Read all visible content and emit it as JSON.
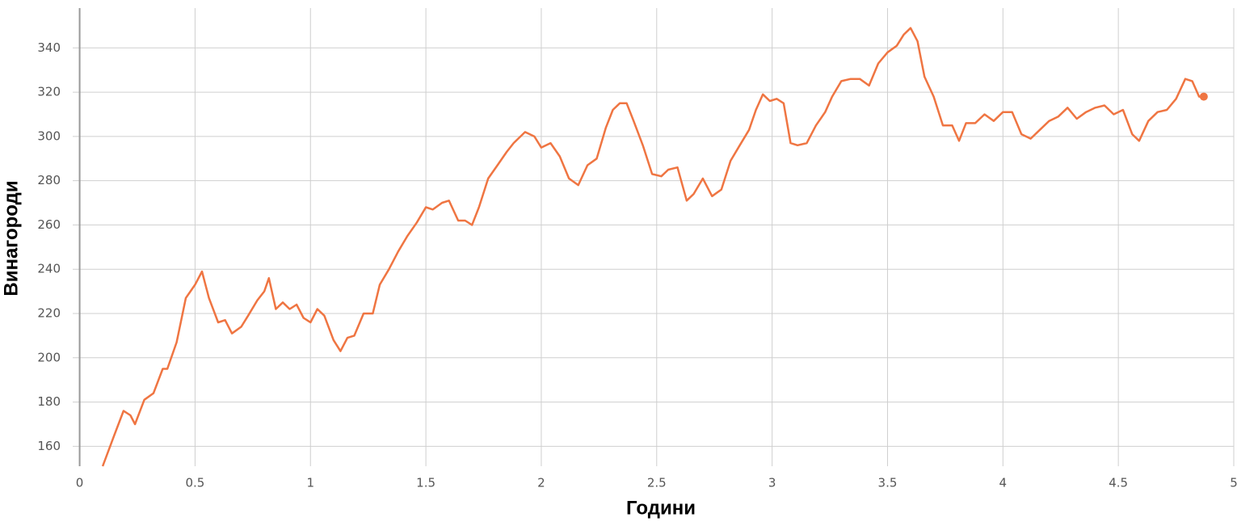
{
  "chart_data": {
    "type": "line",
    "x_label": "Години",
    "y_label": "Винагороди",
    "xlim": [
      -0.03,
      5
    ],
    "ylim": [
      151,
      358
    ],
    "xticks": [
      0,
      0.5,
      1,
      1.5,
      2,
      2.5,
      3,
      3.5,
      4,
      4.5,
      5
    ],
    "yticks": [
      160,
      180,
      200,
      220,
      240,
      260,
      280,
      300,
      320,
      340
    ],
    "grid": true,
    "series": [
      {
        "color": "#ef7542",
        "x": [
          0.1,
          0.15,
          0.19,
          0.22,
          0.24,
          0.28,
          0.32,
          0.36,
          0.38,
          0.42,
          0.46,
          0.48,
          0.5,
          0.53,
          0.56,
          0.6,
          0.63,
          0.66,
          0.7,
          0.73,
          0.77,
          0.8,
          0.82,
          0.85,
          0.88,
          0.91,
          0.94,
          0.97,
          1.0,
          1.03,
          1.06,
          1.1,
          1.13,
          1.16,
          1.19,
          1.23,
          1.27,
          1.3,
          1.34,
          1.38,
          1.42,
          1.46,
          1.5,
          1.53,
          1.57,
          1.6,
          1.64,
          1.67,
          1.7,
          1.73,
          1.77,
          1.81,
          1.85,
          1.88,
          1.91,
          1.93,
          1.97,
          2.0,
          2.04,
          2.08,
          2.12,
          2.16,
          2.2,
          2.24,
          2.28,
          2.31,
          2.34,
          2.37,
          2.4,
          2.44,
          2.48,
          2.52,
          2.55,
          2.59,
          2.63,
          2.66,
          2.7,
          2.74,
          2.78,
          2.82,
          2.86,
          2.9,
          2.93,
          2.96,
          2.99,
          3.02,
          3.05,
          3.08,
          3.11,
          3.15,
          3.19,
          3.23,
          3.26,
          3.3,
          3.34,
          3.38,
          3.42,
          3.46,
          3.5,
          3.54,
          3.57,
          3.6,
          3.63,
          3.66,
          3.7,
          3.74,
          3.78,
          3.81,
          3.84,
          3.88,
          3.92,
          3.96,
          4.0,
          4.04,
          4.08,
          4.12,
          4.16,
          4.2,
          4.24,
          4.28,
          4.32,
          4.36,
          4.4,
          4.44,
          4.48,
          4.52,
          4.56,
          4.59,
          4.63,
          4.67,
          4.71,
          4.75,
          4.79,
          4.82,
          4.85,
          4.87
        ],
        "values": [
          151,
          165,
          176,
          174,
          170,
          181,
          184,
          195,
          195,
          207,
          227,
          230,
          233,
          239,
          227,
          216,
          217,
          211,
          214,
          219,
          226,
          230,
          236,
          222,
          225,
          222,
          224,
          218,
          216,
          222,
          219,
          208,
          203,
          209,
          210,
          220,
          220,
          233,
          240,
          248,
          255,
          261,
          268,
          267,
          270,
          271,
          262,
          262,
          260,
          268,
          281,
          287,
          293,
          297,
          300,
          302,
          300,
          295,
          297,
          291,
          281,
          278,
          287,
          290,
          304,
          312,
          315,
          315,
          307,
          296,
          283,
          282,
          285,
          286,
          271,
          274,
          281,
          273,
          276,
          289,
          296,
          303,
          312,
          319,
          316,
          317,
          315,
          297,
          296,
          297,
          305,
          311,
          318,
          325,
          326,
          326,
          323,
          333,
          338,
          341,
          346,
          349,
          343,
          327,
          318,
          305,
          305,
          298,
          306,
          306,
          310,
          307,
          311,
          311,
          301,
          299,
          303,
          307,
          309,
          313,
          308,
          311,
          313,
          314,
          310,
          312,
          301,
          298,
          307,
          311,
          312,
          317,
          326,
          325,
          318,
          318
        ]
      }
    ]
  }
}
